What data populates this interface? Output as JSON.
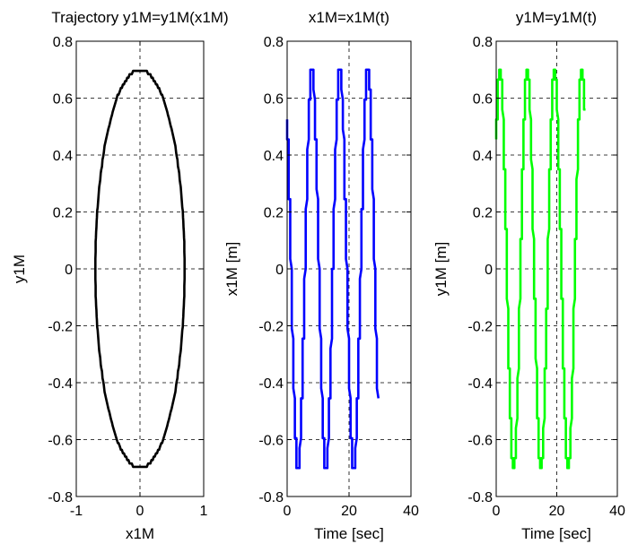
{
  "chart_data": [
    {
      "type": "line",
      "title": "Trajectory y1M=y1M(x1M)",
      "xlabel": "x1M",
      "ylabel": "y1M",
      "xlim": [
        -1,
        1
      ],
      "ylim": [
        -0.8,
        0.8
      ],
      "xticks": [
        -1,
        0,
        1
      ],
      "xtick_labels": [
        "-1",
        "0",
        "1"
      ],
      "yticks": [
        -0.8,
        -0.6,
        -0.4,
        -0.2,
        0,
        0.2,
        0.4,
        0.6,
        0.8
      ],
      "ytick_labels": [
        "-0.8",
        "-0.6",
        "-0.4",
        "-0.2",
        "0",
        "0.2",
        "0.4",
        "0.6",
        "0.8"
      ],
      "grid": true,
      "color": "#000000",
      "curve": "ellipse",
      "x_amplitude": 0.7,
      "y_amplitude": 0.7
    },
    {
      "type": "line",
      "title": "x1M=x1M(t)",
      "xlabel": "Time [sec]",
      "ylabel": "x1M [m]",
      "xlim": [
        0,
        40
      ],
      "ylim": [
        -0.8,
        0.8
      ],
      "xticks": [
        0,
        20,
        40
      ],
      "xtick_labels": [
        "0",
        "20",
        "40"
      ],
      "yticks": [
        -0.8,
        -0.6,
        -0.4,
        -0.2,
        0,
        0.2,
        0.4,
        0.6,
        0.8
      ],
      "ytick_labels": [
        "-0.8",
        "-0.6",
        "-0.4",
        "-0.2",
        "0",
        "0.2",
        "0.4",
        "0.6",
        "0.8"
      ],
      "grid": true,
      "color": "#0000ff",
      "amplitude": 0.7,
      "period": 9.0,
      "t_range": [
        0.3,
        29.5
      ],
      "start_value": 0.53,
      "end_value": -0.38
    },
    {
      "type": "line",
      "title": "y1M=y1M(t)",
      "xlabel": "Time [sec]",
      "ylabel": "y1M [m]",
      "xlim": [
        0,
        40
      ],
      "ylim": [
        -0.8,
        0.8
      ],
      "xticks": [
        0,
        20,
        40
      ],
      "xtick_labels": [
        "0",
        "20",
        "40"
      ],
      "yticks": [
        -0.8,
        -0.6,
        -0.4,
        -0.2,
        0,
        0.2,
        0.4,
        0.6,
        0.8
      ],
      "ytick_labels": [
        "-0.8",
        "-0.6",
        "-0.4",
        "-0.2",
        "0",
        "0.2",
        "0.4",
        "0.6",
        "0.8"
      ],
      "grid": true,
      "color": "#00ff00",
      "amplitude": 0.7,
      "period": 9.0,
      "t_range": [
        0.3,
        29.5
      ],
      "start_value": 0.46,
      "end_value": 0.63
    }
  ]
}
